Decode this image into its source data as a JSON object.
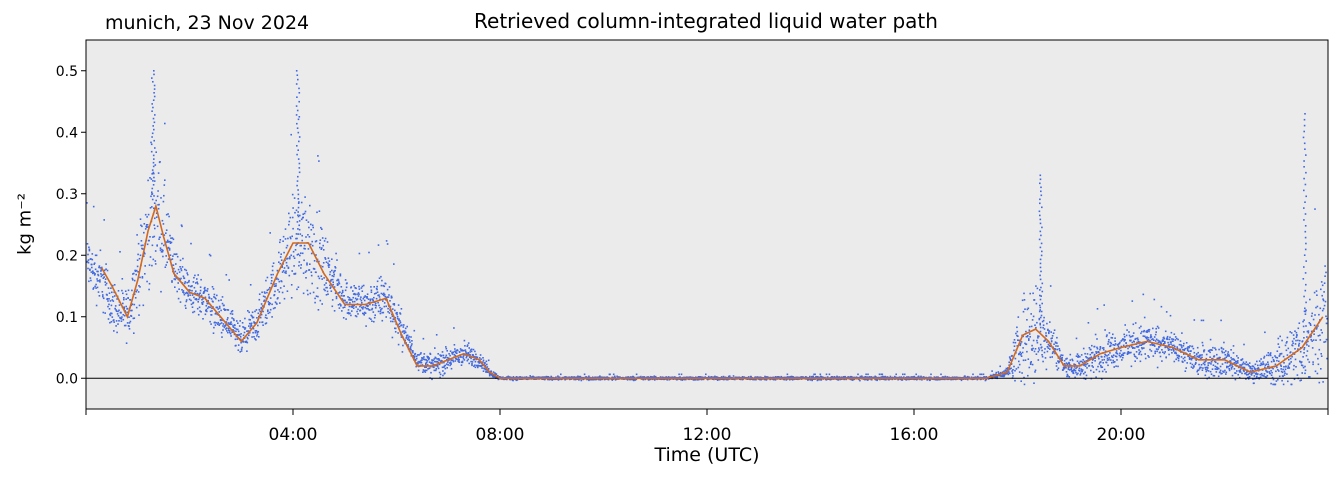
{
  "header": {
    "location_date": "munich, 23 Nov 2024"
  },
  "chart_data": {
    "type": "scatter",
    "title": "Retrieved column-integrated liquid water path",
    "xlabel": "Time (UTC)",
    "ylabel": "kg m⁻²",
    "xlim_hours": [
      0,
      24
    ],
    "ylim": [
      -0.05,
      0.55
    ],
    "x_ticks": [
      {
        "hour": 0,
        "label": ""
      },
      {
        "hour": 4,
        "label": "04:00"
      },
      {
        "hour": 8,
        "label": "08:00"
      },
      {
        "hour": 12,
        "label": "12:00"
      },
      {
        "hour": 16,
        "label": "16:00"
      },
      {
        "hour": 20,
        "label": "20:00"
      },
      {
        "hour": 24,
        "label": ""
      }
    ],
    "y_ticks": [
      0.0,
      0.1,
      0.2,
      0.3,
      0.4,
      0.5
    ],
    "y_tick_labels": [
      "0.0",
      "0.1",
      "0.2",
      "0.3",
      "0.4",
      "0.5"
    ],
    "zero_line": 0.0,
    "background_color": "#ebebeb",
    "series": [
      {
        "kind": "raw_points",
        "color": "#4169e1",
        "smoothed_envelope": {
          "x": [
            0.0,
            0.3,
            0.5,
            0.8,
            1.0,
            1.2,
            1.35,
            1.5,
            1.7,
            2.0,
            2.3,
            2.7,
            3.0,
            3.3,
            3.7,
            4.0,
            4.3,
            4.6,
            5.0,
            5.4,
            5.8,
            6.1,
            6.4,
            6.7,
            7.0,
            7.3,
            7.6,
            7.8,
            8.0,
            9.0,
            12.0,
            16.0,
            17.4,
            17.8,
            18.1,
            18.35,
            18.6,
            18.9,
            19.2,
            19.6,
            20.0,
            20.5,
            21.0,
            21.5,
            22.0,
            22.5,
            23.0,
            23.5,
            23.9
          ],
          "y": [
            0.19,
            0.16,
            0.12,
            0.1,
            0.17,
            0.24,
            0.28,
            0.24,
            0.18,
            0.14,
            0.13,
            0.09,
            0.06,
            0.09,
            0.16,
            0.22,
            0.22,
            0.18,
            0.13,
            0.12,
            0.13,
            0.08,
            0.03,
            0.02,
            0.03,
            0.04,
            0.03,
            0.01,
            0.0,
            0.0,
            0.0,
            0.0,
            0.0,
            0.01,
            0.06,
            0.08,
            0.07,
            0.02,
            0.02,
            0.04,
            0.05,
            0.06,
            0.05,
            0.03,
            0.03,
            0.01,
            0.02,
            0.05,
            0.1
          ],
          "spread": [
            0.06,
            0.07,
            0.06,
            0.06,
            0.09,
            0.14,
            0.16,
            0.12,
            0.06,
            0.05,
            0.05,
            0.05,
            0.04,
            0.05,
            0.07,
            0.12,
            0.14,
            0.08,
            0.05,
            0.05,
            0.06,
            0.04,
            0.02,
            0.03,
            0.03,
            0.03,
            0.02,
            0.01,
            0.004,
            0.004,
            0.004,
            0.004,
            0.004,
            0.01,
            0.1,
            0.14,
            0.06,
            0.02,
            0.03,
            0.05,
            0.04,
            0.05,
            0.03,
            0.04,
            0.04,
            0.02,
            0.05,
            0.09,
            0.14
          ]
        }
      },
      {
        "kind": "smoothed_line",
        "color": "#d2691e",
        "x": [
          0.3,
          0.5,
          0.8,
          1.0,
          1.2,
          1.35,
          1.5,
          1.7,
          2.0,
          2.3,
          2.7,
          3.0,
          3.3,
          3.7,
          4.0,
          4.3,
          4.6,
          5.0,
          5.4,
          5.8,
          6.1,
          6.4,
          6.7,
          7.0,
          7.3,
          7.6,
          7.8,
          8.0,
          9.0,
          12.0,
          16.0,
          17.4,
          17.8,
          18.1,
          18.35,
          18.6,
          18.9,
          19.2,
          19.6,
          20.0,
          20.5,
          21.0,
          21.5,
          22.0,
          22.5,
          23.0,
          23.5,
          23.9
        ],
        "y": [
          0.18,
          0.15,
          0.1,
          0.16,
          0.24,
          0.28,
          0.23,
          0.17,
          0.14,
          0.13,
          0.09,
          0.06,
          0.09,
          0.17,
          0.22,
          0.22,
          0.17,
          0.12,
          0.12,
          0.13,
          0.07,
          0.02,
          0.02,
          0.03,
          0.04,
          0.03,
          0.01,
          0.0,
          0.0,
          0.0,
          0.0,
          0.0,
          0.01,
          0.07,
          0.08,
          0.06,
          0.02,
          0.02,
          0.04,
          0.05,
          0.06,
          0.05,
          0.03,
          0.03,
          0.01,
          0.02,
          0.05,
          0.1
        ]
      }
    ],
    "peaks": [
      {
        "x": 1.3,
        "y": 0.5
      },
      {
        "x": 4.1,
        "y": 0.5
      },
      {
        "x": 18.45,
        "y": 0.33
      },
      {
        "x": 23.55,
        "y": 0.43
      }
    ]
  }
}
